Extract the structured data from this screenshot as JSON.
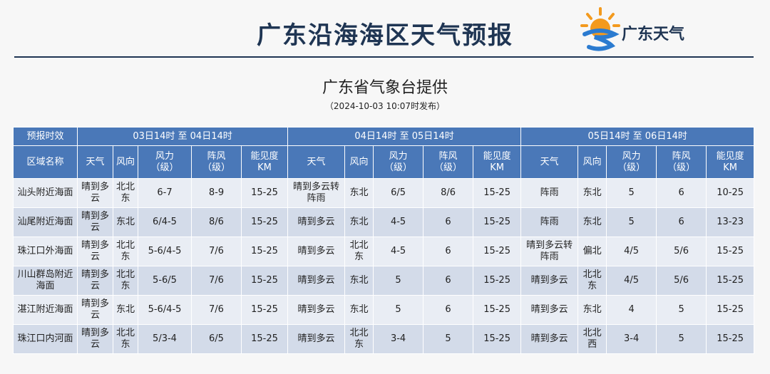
{
  "header": {
    "title": "广东沿海海区天气预报",
    "logo_text": "广东天气"
  },
  "subtitle": "广东省气象台提供",
  "issued": "（2024-10-03 10:07时发布）",
  "table": {
    "period_label": "预报时效",
    "region_label": "区域名称",
    "periods": [
      "03日14时 至 04日14时",
      "04日14时 至 05日14时",
      "05日14时 至 06日14时"
    ],
    "columns": [
      "天气",
      "风向",
      "风力\n（级）",
      "阵风\n（级）",
      "能见度\nKM"
    ],
    "rows": [
      [
        "汕头附近海面",
        "晴到多云",
        "北北东",
        "6-7",
        "8-9",
        "15-25",
        "晴到多云转阵雨",
        "东北",
        "6/5",
        "8/6",
        "15-25",
        "阵雨",
        "东北",
        "5",
        "6",
        "10-25"
      ],
      [
        "汕尾附近海面",
        "晴到多云",
        "东北",
        "6/4-5",
        "8/6",
        "15-25",
        "晴到多云",
        "东北",
        "4-5",
        "6",
        "15-25",
        "阵雨",
        "东北",
        "5",
        "6",
        "13-23"
      ],
      [
        "珠江口外海面",
        "晴到多云",
        "北北东",
        "5-6/4-5",
        "7/6",
        "15-25",
        "晴到多云",
        "北北东",
        "4-5",
        "6",
        "15-25",
        "晴到多云转阵雨",
        "偏北",
        "4/5",
        "5/6",
        "15-25"
      ],
      [
        "川山群岛附近海面",
        "晴到多云",
        "北北东",
        "5-6/5",
        "7/6",
        "15-25",
        "晴到多云",
        "东北",
        "5",
        "6",
        "15-25",
        "晴到多云",
        "北北东",
        "4/5",
        "5/6",
        "15-25"
      ],
      [
        "湛江附近海面",
        "晴到多云",
        "东北",
        "5-6/4-5",
        "7/6",
        "15-25",
        "晴到多云",
        "东北",
        "5",
        "6",
        "15-25",
        "晴到多云",
        "东北",
        "4",
        "5",
        "15-25"
      ],
      [
        "珠江口内河面",
        "晴到多云",
        "北北东",
        "5/3-4",
        "6/5",
        "15-25",
        "晴到多云",
        "北北东",
        "3-4",
        "5",
        "15-25",
        "晴到多云",
        "北北西",
        "3-4",
        "5",
        "15-25"
      ]
    ]
  }
}
